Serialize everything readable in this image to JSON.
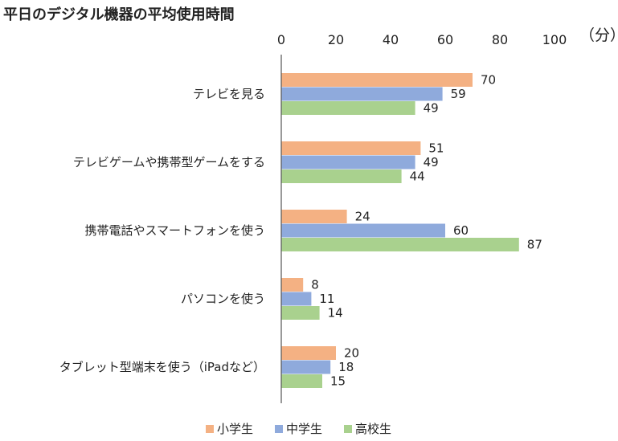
{
  "chart_data": {
    "type": "bar",
    "orientation": "horizontal",
    "title": "平日のデジタル機器の平均使用時間",
    "unit_label": "（分）",
    "xlim": [
      0,
      100
    ],
    "x_ticks": [
      0,
      20,
      40,
      60,
      80,
      100
    ],
    "categories": [
      "テレビを見る",
      "テレビゲームや携帯型ゲームをする",
      "携帯電話やスマートフォンを使う",
      "パソコンを使う",
      "タブレット型端末を使う（iPadなど）"
    ],
    "series": [
      {
        "name": "小学生",
        "color": "#f4b183",
        "values": [
          70,
          51,
          24,
          8,
          20
        ]
      },
      {
        "name": "中学生",
        "color": "#8faadc",
        "values": [
          59,
          49,
          60,
          11,
          18
        ]
      },
      {
        "name": "高校生",
        "color": "#a9d18e",
        "values": [
          49,
          44,
          87,
          14,
          15
        ]
      }
    ],
    "grid": false,
    "legend_position": "bottom"
  }
}
